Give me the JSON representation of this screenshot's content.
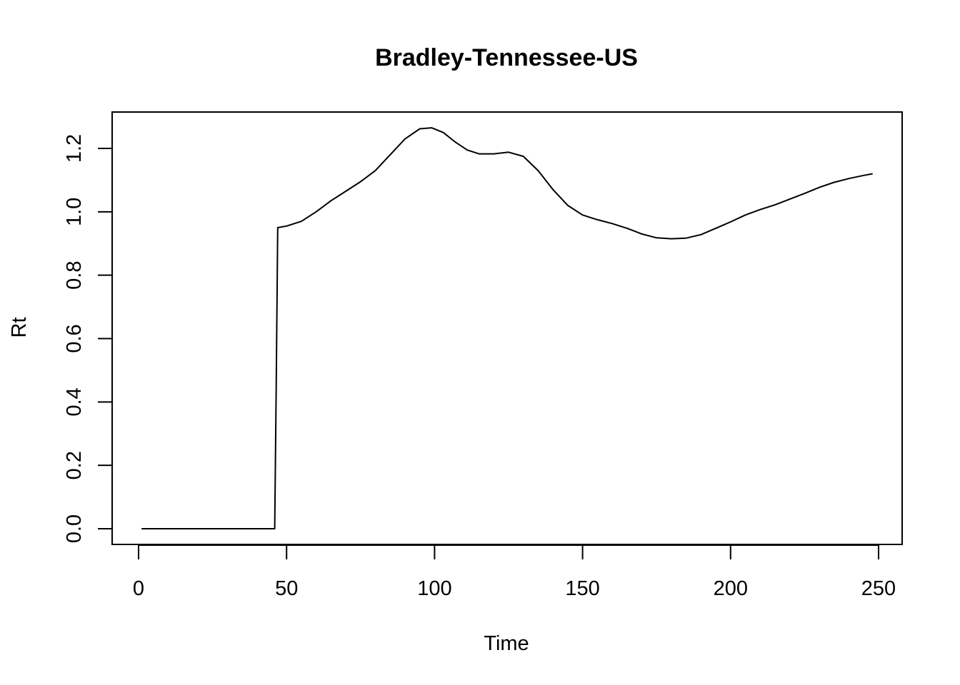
{
  "chart_data": {
    "type": "line",
    "title": "Bradley-Tennessee-US",
    "xlabel": "Time",
    "ylabel": "Rt",
    "xlim": [
      0,
      250
    ],
    "ylim": [
      0.0,
      1.2
    ],
    "x_ticks": [
      0,
      50,
      100,
      150,
      200,
      250
    ],
    "x_tick_labels": [
      "0",
      "50",
      "100",
      "150",
      "200",
      "250"
    ],
    "y_ticks": [
      0.0,
      0.2,
      0.4,
      0.6,
      0.8,
      1.0,
      1.2
    ],
    "y_tick_labels": [
      "0.0",
      "0.2",
      "0.4",
      "0.6",
      "0.8",
      "1.0",
      "1.2"
    ],
    "grid": false,
    "legend": "none",
    "color": "#000000",
    "series": [
      {
        "x": [
          1,
          10,
          20,
          30,
          40,
          46,
          46.5,
          47,
          50,
          55,
          60,
          65,
          70,
          75,
          80,
          85,
          90,
          95,
          99,
          103,
          107,
          111,
          115,
          120,
          125,
          130,
          135,
          140,
          145,
          150,
          155,
          160,
          165,
          170,
          175,
          180,
          185,
          190,
          195,
          200,
          205,
          210,
          215,
          220,
          225,
          230,
          235,
          240,
          245,
          248
        ],
        "y": [
          0,
          0,
          0,
          0,
          0,
          0,
          0.45,
          0.95,
          0.955,
          0.97,
          1.0,
          1.035,
          1.065,
          1.095,
          1.13,
          1.18,
          1.23,
          1.262,
          1.265,
          1.25,
          1.22,
          1.195,
          1.183,
          1.183,
          1.188,
          1.175,
          1.13,
          1.07,
          1.02,
          0.99,
          0.975,
          0.963,
          0.948,
          0.93,
          0.918,
          0.915,
          0.917,
          0.928,
          0.948,
          0.968,
          0.99,
          1.007,
          1.022,
          1.04,
          1.058,
          1.077,
          1.093,
          1.105,
          1.115,
          1.12
        ]
      }
    ]
  }
}
